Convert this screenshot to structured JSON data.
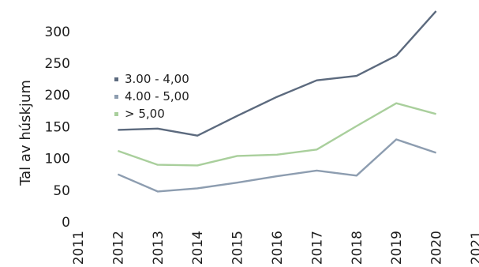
{
  "chart_data": {
    "type": "line",
    "title": "",
    "xlabel": "",
    "ylabel": "Tal av húskjum",
    "x": [
      2012,
      2013,
      2014,
      2015,
      2016,
      2017,
      2018,
      2019,
      2020
    ],
    "x_ticks": [
      "2011",
      "2012",
      "2013",
      "2014",
      "2015",
      "2016",
      "2017",
      "2018",
      "2019",
      "2020",
      "2021"
    ],
    "y_ticks": [
      "0",
      "50",
      "100",
      "150",
      "200",
      "250",
      "300"
    ],
    "xlim": [
      2011,
      2021
    ],
    "ylim": [
      0,
      340
    ],
    "grid": false,
    "legend_position": "top-left",
    "series": [
      {
        "name": "3.00 - 4,00",
        "color": "#5c6a7e",
        "values": [
          145,
          147,
          136,
          167,
          197,
          223,
          230,
          262,
          332
        ]
      },
      {
        "name": "4.00 - 5,00",
        "color": "#8d9db0",
        "values": [
          75,
          48,
          53,
          62,
          72,
          81,
          73,
          130,
          109
        ]
      },
      {
        "name": "> 5,00",
        "color": "#a9cf9c",
        "values": [
          112,
          90,
          89,
          104,
          106,
          114,
          151,
          187,
          170
        ]
      }
    ]
  }
}
